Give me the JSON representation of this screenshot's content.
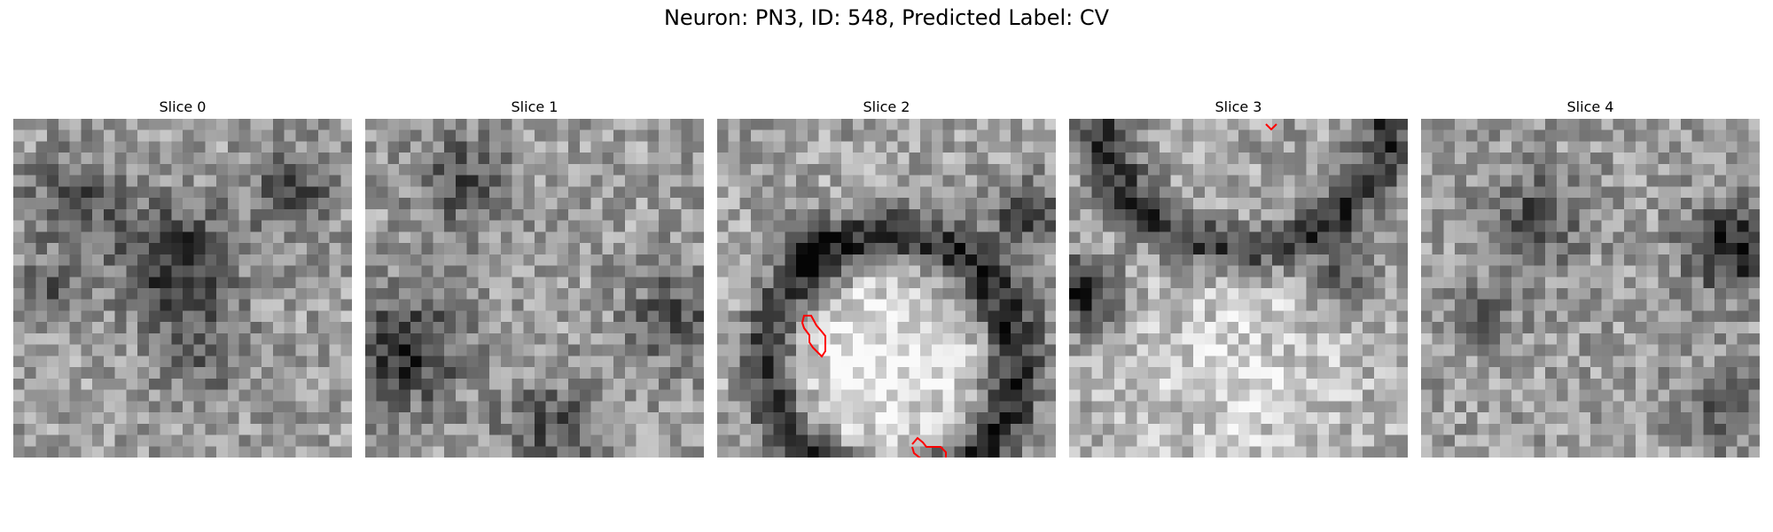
{
  "figure": {
    "title": "Neuron: PN3, ID: 548, Predicted Label: CV"
  },
  "slices": [
    {
      "title": "Slice 0",
      "seed": 11,
      "contours": []
    },
    {
      "title": "Slice 1",
      "seed": 23,
      "contours": []
    },
    {
      "title": "Slice 2",
      "seed": 37,
      "contours": [
        "contour-a",
        "contour-b"
      ]
    },
    {
      "title": "Slice 3",
      "seed": 41,
      "contours": [
        "contour-c"
      ]
    },
    {
      "title": "Slice 4",
      "seed": 53,
      "contours": []
    }
  ],
  "style": {
    "contour_color": "#ff0000",
    "colormap": "grayscale"
  }
}
